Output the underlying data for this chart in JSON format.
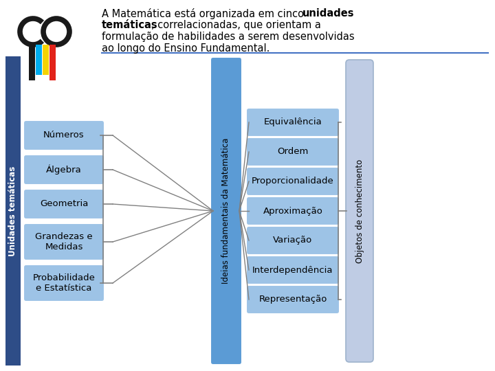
{
  "title_line1_normal": "A Matemática está organizada em cinco ",
  "title_line1_bold": "unidades",
  "title_line2_bold": "temáticas",
  "title_line2_normal": ", correlacionadas, que orientam a",
  "title_line3": "formulação de habilidades a serem desenvolvidas",
  "title_line4": "ao longo do Ensino Fundamental.",
  "left_bar_label": "Unidades temáticas",
  "left_bar_color": "#2E4D87",
  "center_box_label": "Ideias fundamentais da Matemática",
  "center_box_color": "#5B9BD5",
  "right_bar_label": "Objetos de conhecimento",
  "right_bar_color": "#BFCCE4",
  "left_boxes": [
    "Números",
    "Álgebra",
    "Geometria",
    "Grandezas e\nMedidas",
    "Probabilidade\ne Estatística"
  ],
  "left_box_color": "#9DC3E6",
  "right_boxes": [
    "Equivalência",
    "Ordem",
    "Proporcionalidade",
    "Aproximação",
    "Variação",
    "Interdependência",
    "Representação"
  ],
  "right_box_color": "#9DC3E6",
  "bg_color": "#FFFFFF",
  "logo_bar_colors": [
    "#1A1A1A",
    "#00ADEF",
    "#F5D300",
    "#E2231A"
  ],
  "bracket_color": "#808080",
  "line_color": "#808080",
  "header_line_color": "#4472C4"
}
